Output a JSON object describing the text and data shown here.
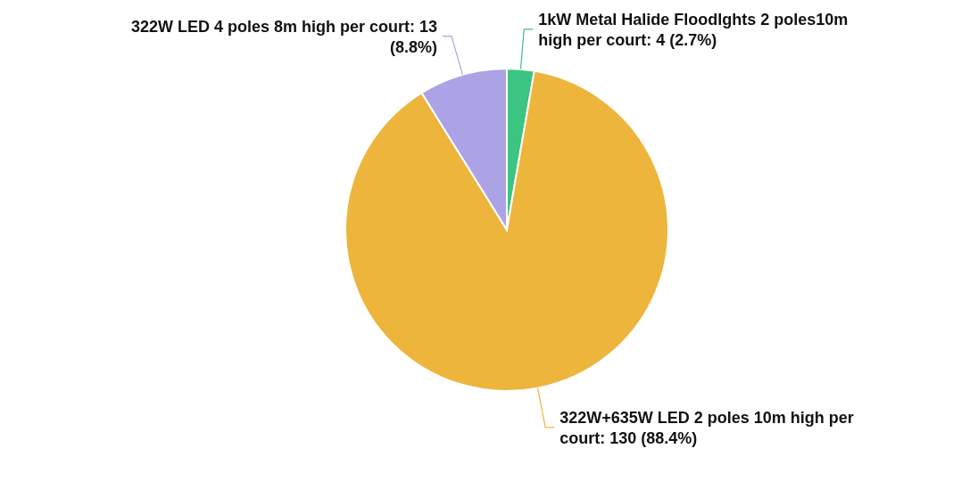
{
  "chart_data": {
    "type": "pie",
    "categories": [
      "1kW Metal Halide Floodlghts 2 poles10m high per court",
      "322W+635W LED 2 poles 10m high per court",
      "322W LED 4 poles 8m high per court"
    ],
    "values": [
      4,
      130,
      13
    ],
    "value_labels": [
      "4 (2.7%)",
      "130 (88.4%)",
      "13 (8.8%)"
    ],
    "colors": [
      "#3cc482",
      "#edb53c",
      "#aba3e6"
    ],
    "legend": false
  }
}
